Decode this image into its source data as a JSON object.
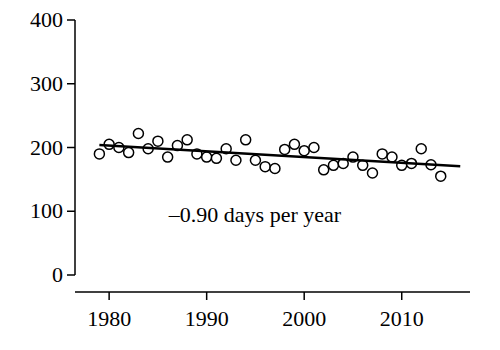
{
  "chart_data": {
    "type": "scatter",
    "annotation": "–0.90 days per year",
    "x": [
      1979,
      1980,
      1981,
      1982,
      1983,
      1984,
      1985,
      1986,
      1987,
      1988,
      1989,
      1990,
      1991,
      1992,
      1993,
      1994,
      1995,
      1996,
      1997,
      1998,
      1999,
      2000,
      2001,
      2002,
      2003,
      2004,
      2005,
      2006,
      2007,
      2008,
      2009,
      2010,
      2011,
      2012,
      2013,
      2014
    ],
    "series": [
      {
        "type": "scatter",
        "marker": "circle",
        "color": "#000000",
        "values": [
          190,
          205,
          200,
          192,
          222,
          198,
          210,
          185,
          203,
          212,
          190,
          185,
          183,
          198,
          180,
          212,
          180,
          170,
          167,
          197,
          205,
          195,
          200,
          165,
          172,
          175,
          185,
          172,
          160,
          190,
          185,
          172,
          175,
          198,
          173,
          155
        ]
      },
      {
        "type": "line",
        "line_style": "solid",
        "color": "#000000",
        "x": [
          1979,
          2016
        ],
        "values": [
          204,
          170.7
        ]
      }
    ],
    "xlim": [
      1976.5,
      2017
    ],
    "xticks": [
      1980,
      1990,
      2000,
      2010
    ],
    "ylim": [
      0,
      400
    ],
    "yticks": [
      0,
      100,
      200,
      300,
      400
    ],
    "grid": false
  }
}
